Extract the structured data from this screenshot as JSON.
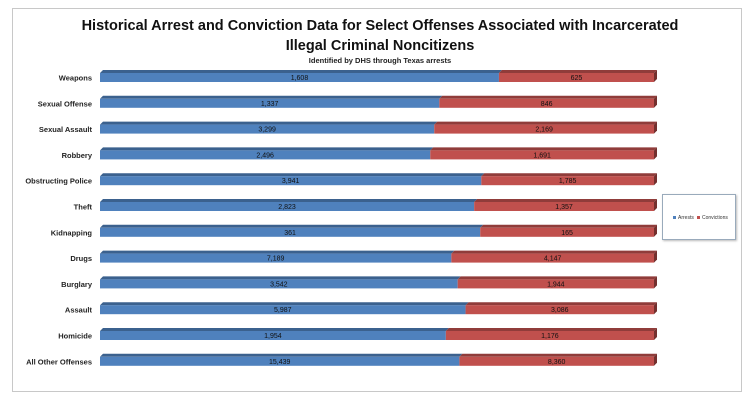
{
  "chart_data": {
    "type": "bar",
    "orientation": "horizontal",
    "stacked": true,
    "normalized_100_percent": true,
    "title": "Historical Arrest and Conviction Data for Select Offenses Associated with Incarcerated Illegal Criminal Noncitizens",
    "subtitle": "Identified by DHS through Texas arrests",
    "categories": [
      "Weapons",
      "Sexual Offense",
      "Sexual Assault",
      "Robbery",
      "Obstructing Police",
      "Theft",
      "Kidnapping",
      "Drugs",
      "Burglary",
      "Assault",
      "Homicide",
      "All Other Offenses"
    ],
    "series": [
      {
        "name": "Arrests",
        "color": "#4f81bd",
        "values": [
          1608,
          1337,
          3299,
          2496,
          3941,
          2823,
          361,
          7189,
          3542,
          5987,
          1954,
          15439
        ],
        "labels": [
          "1,608",
          "1,337",
          "3,299",
          "2,496",
          "3,941",
          "2,823",
          "361",
          "7,189",
          "3,542",
          "5,987",
          "1,954",
          "15,439"
        ]
      },
      {
        "name": "Convictions",
        "color": "#c0504d",
        "values": [
          625,
          846,
          2169,
          1691,
          1785,
          1357,
          165,
          4147,
          1944,
          3086,
          1176,
          8360
        ],
        "labels": [
          "625",
          "846",
          "2,169",
          "1,691",
          "1,785",
          "1,357",
          "165",
          "4,147",
          "1,944",
          "3,086",
          "1,176",
          "8,360"
        ]
      }
    ],
    "legend_position": "right",
    "grid": false
  }
}
